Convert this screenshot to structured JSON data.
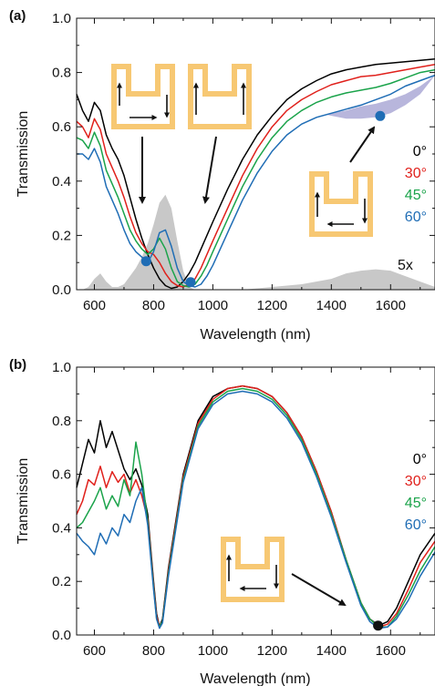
{
  "chart_data": [
    {
      "panel_label": "(a)",
      "type": "line",
      "xlabel": "Wavelength (nm)",
      "ylabel": "Transmission",
      "xlim": [
        540,
        1750
      ],
      "ylim": [
        0,
        1.0
      ],
      "xticks": [
        600,
        800,
        1000,
        1200,
        1400,
        1600
      ],
      "yticks": [
        0.0,
        0.2,
        0.4,
        0.6,
        0.8,
        1.0
      ],
      "xtick_labels": [
        "600",
        "800",
        "1000",
        "1200",
        "1400",
        "1600"
      ],
      "ytick_labels": [
        "0.0",
        "0.2",
        "0.4",
        "0.6",
        "0.8",
        "1.0"
      ],
      "legend_placement": "right",
      "series": [
        {
          "name": "0°",
          "color": "#000000",
          "x": [
            540,
            560,
            580,
            600,
            620,
            640,
            660,
            680,
            700,
            720,
            740,
            760,
            780,
            800,
            820,
            840,
            860,
            880,
            900,
            920,
            940,
            960,
            1000,
            1050,
            1100,
            1150,
            1200,
            1250,
            1300,
            1350,
            1400,
            1450,
            1500,
            1550,
            1600,
            1650,
            1700,
            1750
          ],
          "y": [
            0.72,
            0.66,
            0.62,
            0.69,
            0.66,
            0.57,
            0.52,
            0.48,
            0.42,
            0.34,
            0.26,
            0.19,
            0.13,
            0.08,
            0.04,
            0.015,
            0.005,
            0.01,
            0.03,
            0.06,
            0.1,
            0.15,
            0.25,
            0.37,
            0.48,
            0.57,
            0.64,
            0.7,
            0.74,
            0.77,
            0.795,
            0.81,
            0.82,
            0.83,
            0.835,
            0.84,
            0.845,
            0.85
          ]
        },
        {
          "name": "30°",
          "color": "#e0201b",
          "x": [
            540,
            560,
            580,
            600,
            620,
            640,
            660,
            680,
            700,
            720,
            740,
            760,
            780,
            800,
            820,
            840,
            860,
            880,
            900,
            920,
            940,
            960,
            980,
            1000,
            1050,
            1100,
            1150,
            1200,
            1250,
            1300,
            1350,
            1400,
            1450,
            1500,
            1550,
            1600,
            1650,
            1700,
            1750
          ],
          "y": [
            0.62,
            0.6,
            0.56,
            0.63,
            0.59,
            0.5,
            0.45,
            0.4,
            0.34,
            0.27,
            0.21,
            0.17,
            0.14,
            0.13,
            0.1,
            0.06,
            0.03,
            0.015,
            0.01,
            0.02,
            0.04,
            0.08,
            0.13,
            0.18,
            0.3,
            0.42,
            0.52,
            0.6,
            0.66,
            0.7,
            0.73,
            0.755,
            0.77,
            0.785,
            0.79,
            0.8,
            0.81,
            0.82,
            0.83
          ]
        },
        {
          "name": "45°",
          "color": "#1aa34a",
          "x": [
            540,
            560,
            580,
            600,
            620,
            640,
            660,
            680,
            700,
            720,
            740,
            760,
            780,
            800,
            820,
            840,
            860,
            880,
            900,
            920,
            940,
            960,
            980,
            1000,
            1050,
            1100,
            1150,
            1200,
            1250,
            1300,
            1350,
            1400,
            1450,
            1500,
            1550,
            1600,
            1650,
            1700,
            1750
          ],
          "y": [
            0.56,
            0.55,
            0.52,
            0.58,
            0.53,
            0.44,
            0.39,
            0.34,
            0.28,
            0.22,
            0.18,
            0.15,
            0.13,
            0.15,
            0.19,
            0.15,
            0.08,
            0.03,
            0.015,
            0.01,
            0.02,
            0.05,
            0.09,
            0.14,
            0.26,
            0.38,
            0.48,
            0.56,
            0.62,
            0.66,
            0.69,
            0.71,
            0.725,
            0.735,
            0.745,
            0.76,
            0.78,
            0.8,
            0.81
          ]
        },
        {
          "name": "60°",
          "color": "#1f6db5",
          "x": [
            540,
            560,
            580,
            600,
            620,
            640,
            660,
            680,
            700,
            720,
            740,
            760,
            780,
            800,
            820,
            840,
            860,
            880,
            900,
            920,
            940,
            960,
            980,
            1000,
            1050,
            1100,
            1150,
            1200,
            1250,
            1300,
            1350,
            1400,
            1450,
            1500,
            1550,
            1600,
            1650,
            1700,
            1750
          ],
          "y": [
            0.5,
            0.5,
            0.48,
            0.52,
            0.47,
            0.38,
            0.33,
            0.28,
            0.22,
            0.17,
            0.14,
            0.12,
            0.1,
            0.14,
            0.21,
            0.22,
            0.16,
            0.08,
            0.03,
            0.015,
            0.01,
            0.02,
            0.05,
            0.09,
            0.21,
            0.33,
            0.43,
            0.51,
            0.57,
            0.61,
            0.635,
            0.65,
            0.665,
            0.68,
            0.7,
            0.72,
            0.75,
            0.77,
            0.79
          ]
        }
      ],
      "shaded_spectrum": {
        "color": "#c8c8c8",
        "x": [
          540,
          560,
          580,
          600,
          620,
          640,
          660,
          680,
          700,
          720,
          740,
          760,
          780,
          800,
          820,
          840,
          860,
          880,
          900,
          920,
          940,
          960,
          1000,
          1100,
          1200,
          1300,
          1400,
          1450,
          1500,
          1550,
          1600,
          1650,
          1700,
          1750
        ],
        "y": [
          0.0,
          0.0,
          0.01,
          0.04,
          0.06,
          0.03,
          0.01,
          0.01,
          0.02,
          0.05,
          0.08,
          0.12,
          0.17,
          0.24,
          0.32,
          0.35,
          0.3,
          0.18,
          0.07,
          0.01,
          0.0,
          0.0,
          0.0,
          0.0,
          0.01,
          0.02,
          0.04,
          0.06,
          0.07,
          0.075,
          0.07,
          0.05,
          0.03,
          0.01
        ]
      },
      "shaded_band": {
        "color": "#b8b6dc",
        "x": [
          1380,
          1450,
          1500,
          1550,
          1600,
          1650,
          1700,
          1750
        ],
        "y_upper": [
          0.645,
          0.66,
          0.675,
          0.685,
          0.7,
          0.72,
          0.75,
          0.79
        ],
        "y_lower": [
          0.645,
          0.63,
          0.63,
          0.635,
          0.65,
          0.68,
          0.72,
          0.79
        ]
      },
      "markers": [
        {
          "x": 775,
          "y": 0.105,
          "color": "#1f6db5"
        },
        {
          "x": 925,
          "y": 0.028,
          "color": "#1f6db5"
        },
        {
          "x": 1565,
          "y": 0.64,
          "color": "#1f6db5"
        }
      ],
      "annotations": [
        {
          "text": "5x",
          "x": 1580,
          "y": 0.09
        }
      ]
    },
    {
      "panel_label": "(b)",
      "type": "line",
      "xlabel": "Wavelength (nm)",
      "ylabel": "Transmission",
      "xlim": [
        540,
        1750
      ],
      "ylim": [
        0,
        1.0
      ],
      "xticks": [
        600,
        800,
        1000,
        1200,
        1400,
        1600
      ],
      "yticks": [
        0.0,
        0.2,
        0.4,
        0.6,
        0.8,
        1.0
      ],
      "xtick_labels": [
        "600",
        "800",
        "1000",
        "1200",
        "1400",
        "1600"
      ],
      "ytick_labels": [
        "0.0",
        "0.2",
        "0.4",
        "0.6",
        "0.8",
        "1.0"
      ],
      "legend_placement": "right",
      "series": [
        {
          "name": "0°",
          "color": "#000000",
          "x": [
            540,
            560,
            580,
            600,
            620,
            640,
            660,
            680,
            700,
            720,
            740,
            760,
            780,
            800,
            810,
            820,
            830,
            850,
            900,
            950,
            1000,
            1050,
            1100,
            1150,
            1200,
            1250,
            1300,
            1350,
            1400,
            1450,
            1500,
            1530,
            1560,
            1590,
            1620,
            1660,
            1700,
            1750
          ],
          "y": [
            0.55,
            0.64,
            0.73,
            0.68,
            0.8,
            0.7,
            0.76,
            0.69,
            0.62,
            0.58,
            0.62,
            0.56,
            0.45,
            0.2,
            0.08,
            0.03,
            0.06,
            0.25,
            0.6,
            0.8,
            0.89,
            0.92,
            0.93,
            0.92,
            0.89,
            0.83,
            0.74,
            0.61,
            0.46,
            0.28,
            0.12,
            0.06,
            0.035,
            0.05,
            0.1,
            0.2,
            0.3,
            0.38
          ]
        },
        {
          "name": "30°",
          "color": "#e0201b",
          "x": [
            540,
            560,
            580,
            600,
            620,
            640,
            660,
            680,
            700,
            720,
            740,
            760,
            780,
            800,
            810,
            820,
            830,
            850,
            900,
            950,
            1000,
            1050,
            1100,
            1150,
            1200,
            1250,
            1300,
            1350,
            1400,
            1450,
            1500,
            1530,
            1560,
            1590,
            1620,
            1660,
            1700,
            1750
          ],
          "y": [
            0.45,
            0.5,
            0.58,
            0.56,
            0.63,
            0.55,
            0.61,
            0.57,
            0.6,
            0.53,
            0.58,
            0.52,
            0.43,
            0.19,
            0.07,
            0.03,
            0.05,
            0.24,
            0.59,
            0.79,
            0.88,
            0.92,
            0.93,
            0.92,
            0.89,
            0.83,
            0.74,
            0.61,
            0.46,
            0.28,
            0.12,
            0.06,
            0.03,
            0.04,
            0.08,
            0.17,
            0.27,
            0.35
          ]
        },
        {
          "name": "45°",
          "color": "#1aa34a",
          "x": [
            540,
            560,
            580,
            600,
            620,
            640,
            660,
            680,
            700,
            720,
            740,
            760,
            780,
            800,
            810,
            820,
            830,
            850,
            900,
            950,
            1000,
            1050,
            1100,
            1150,
            1200,
            1250,
            1300,
            1350,
            1400,
            1450,
            1500,
            1530,
            1560,
            1590,
            1620,
            1660,
            1700,
            1750
          ],
          "y": [
            0.4,
            0.42,
            0.46,
            0.5,
            0.55,
            0.47,
            0.52,
            0.48,
            0.58,
            0.52,
            0.72,
            0.6,
            0.42,
            0.18,
            0.06,
            0.03,
            0.05,
            0.23,
            0.58,
            0.78,
            0.87,
            0.91,
            0.92,
            0.91,
            0.88,
            0.82,
            0.73,
            0.6,
            0.45,
            0.28,
            0.12,
            0.06,
            0.03,
            0.03,
            0.07,
            0.15,
            0.24,
            0.33
          ]
        },
        {
          "name": "60°",
          "color": "#1f6db5",
          "x": [
            540,
            560,
            580,
            600,
            620,
            640,
            660,
            680,
            700,
            720,
            740,
            760,
            780,
            800,
            810,
            820,
            830,
            850,
            900,
            950,
            1000,
            1050,
            1100,
            1150,
            1200,
            1250,
            1300,
            1350,
            1400,
            1450,
            1500,
            1530,
            1560,
            1590,
            1620,
            1660,
            1700,
            1750
          ],
          "y": [
            0.38,
            0.35,
            0.33,
            0.3,
            0.38,
            0.34,
            0.4,
            0.37,
            0.45,
            0.42,
            0.5,
            0.55,
            0.41,
            0.17,
            0.06,
            0.025,
            0.045,
            0.22,
            0.57,
            0.77,
            0.86,
            0.9,
            0.91,
            0.9,
            0.87,
            0.81,
            0.72,
            0.59,
            0.44,
            0.27,
            0.11,
            0.05,
            0.025,
            0.03,
            0.06,
            0.13,
            0.22,
            0.31
          ]
        }
      ],
      "markers": [
        {
          "x": 1558,
          "y": 0.035,
          "color": "#111111"
        }
      ]
    }
  ]
}
